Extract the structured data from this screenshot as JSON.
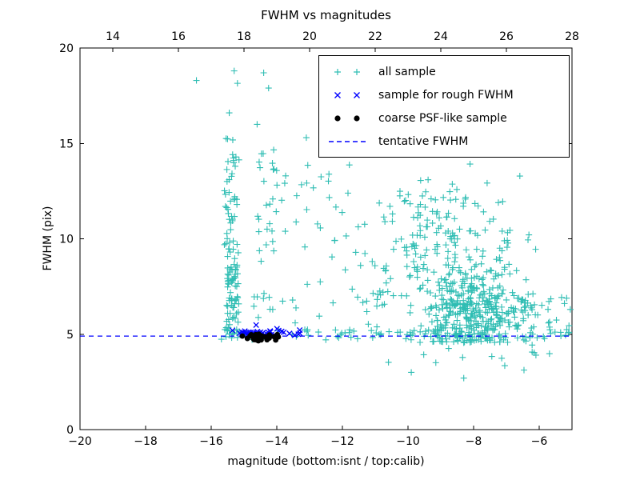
{
  "chart_data": {
    "type": "scatter",
    "title": "FWHM vs magnitudes",
    "xlabel": "magnitude (bottom:isnt / top:calib)",
    "ylabel": "FWHM (pix)",
    "xlim": [
      -20,
      -5
    ],
    "xlim_top": [
      13,
      28
    ],
    "ylim": [
      0,
      20
    ],
    "xticks_bottom": [
      -20,
      -18,
      -16,
      -14,
      -12,
      -10,
      -8,
      -6
    ],
    "xticks_top": [
      14,
      16,
      18,
      20,
      22,
      24,
      26,
      28
    ],
    "yticks": [
      0,
      5,
      10,
      15,
      20
    ],
    "grid": false,
    "legend_position": "upper right",
    "tentative_fwhm": 4.9,
    "colors": {
      "all_sample": "#2fbdb3",
      "rough_sample": "#0000ff",
      "psf_sample": "#000000",
      "tentative_line": "#0000ff",
      "axis": "#000000",
      "background": "#ffffff"
    },
    "legend": [
      {
        "label": "all sample",
        "marker": "plus",
        "color": "#2fbdb3"
      },
      {
        "label": "sample for rough FWHM",
        "marker": "x",
        "color": "#0000ff"
      },
      {
        "label": "coarse PSF-like sample",
        "marker": "dot",
        "color": "#000000"
      },
      {
        "label": "tentative FWHM",
        "marker": "dashed-line",
        "color": "#0000ff"
      }
    ],
    "series": [
      {
        "name": "all sample",
        "marker": "plus",
        "color": "#2fbdb3",
        "clusters": [
          {
            "dist": "uniform",
            "x": [
              -15.6,
              -15.15
            ],
            "y": [
              4.7,
              15.3
            ],
            "n": 80
          },
          {
            "dist": "uniform",
            "x": [
              -15.55,
              -15.2
            ],
            "y": [
              5.0,
              9.0
            ],
            "n": 40
          },
          {
            "dist": "uniform",
            "x": [
              -14.6,
              -13.7
            ],
            "y": [
              8.8,
              14.8
            ],
            "n": 30
          },
          {
            "dist": "uniform",
            "x": [
              -15.1,
              -13.8
            ],
            "y": [
              5.2,
              7.2
            ],
            "n": 10
          },
          {
            "dist": "uniform",
            "x": [
              -13.6,
              -11.7
            ],
            "y": [
              5.3,
              14.2
            ],
            "n": 28
          },
          {
            "dist": "normal",
            "cx": -8.1,
            "sx": 0.85,
            "cy": 6.2,
            "sy": 1.1,
            "n": 380,
            "ymin": 4.55,
            "ymax": 10.2,
            "xmin": -11.8,
            "xmax": -5.05
          },
          {
            "dist": "normal",
            "cx": -9.3,
            "sx": 1.0,
            "cy": 10.3,
            "sy": 1.8,
            "n": 150,
            "ymin": 7.0,
            "ymax": 14.9,
            "xmin": -11.9,
            "xmax": -6.2
          },
          {
            "dist": "uniform",
            "x": [
              -7.4,
              -6.1
            ],
            "y": [
              6.0,
              10.5
            ],
            "n": 30
          },
          {
            "dist": "uniform",
            "x": [
              -15.7,
              -5.1
            ],
            "y": [
              4.7,
              5.25
            ],
            "n": 85
          },
          {
            "dist": "uniform",
            "x": [
              -11.8,
              -10.4
            ],
            "y": [
              5.0,
              9.5
            ],
            "n": 26
          },
          {
            "dist": "uniform",
            "x": [
              -10.9,
              -5.4
            ],
            "y": [
              3.1,
              4.5
            ],
            "n": 12
          },
          {
            "dist": "uniform",
            "x": [
              -6.3,
              -5.05
            ],
            "y": [
              4.65,
              7.0
            ],
            "n": 22
          }
        ],
        "points": [
          [
            -16.45,
            18.3
          ],
          [
            -15.3,
            18.8
          ],
          [
            -15.2,
            18.15
          ],
          [
            -14.4,
            18.7
          ],
          [
            -14.25,
            17.9
          ],
          [
            -12.0,
            18.55
          ],
          [
            -11.55,
            18.35
          ],
          [
            -15.45,
            16.6
          ],
          [
            -14.6,
            16.0
          ],
          [
            -12.25,
            16.15
          ],
          [
            -13.1,
            15.3
          ],
          [
            -9.9,
            3.0
          ],
          [
            -8.3,
            2.7
          ],
          [
            -7.05,
            3.35
          ],
          [
            -6.1,
            3.9
          ]
        ]
      },
      {
        "name": "sample for rough FWHM",
        "marker": "x",
        "color": "#0000ff",
        "clusters": [
          {
            "dist": "normal",
            "cx": -14.3,
            "sx": 0.62,
            "cy": 5.05,
            "sy": 0.1,
            "n": 34,
            "ymin": 4.85,
            "ymax": 5.35,
            "xmin": -15.45,
            "xmax": -13.25
          }
        ],
        "points": [
          [
            -14.63,
            5.48
          ],
          [
            -13.3,
            5.05
          ],
          [
            -15.35,
            5.2
          ],
          [
            -13.45,
            4.95
          ]
        ]
      },
      {
        "name": "coarse PSF-like sample",
        "marker": "dot",
        "color": "#000000",
        "clusters": [
          {
            "dist": "normal",
            "cx": -14.55,
            "sx": 0.3,
            "cy": 4.83,
            "sy": 0.09,
            "n": 30,
            "ymin": 4.6,
            "ymax": 5.0,
            "xmin": -15.1,
            "xmax": -13.95
          }
        ],
        "points": [
          [
            -15.05,
            4.9
          ],
          [
            -13.98,
            4.85
          ]
        ]
      }
    ]
  }
}
